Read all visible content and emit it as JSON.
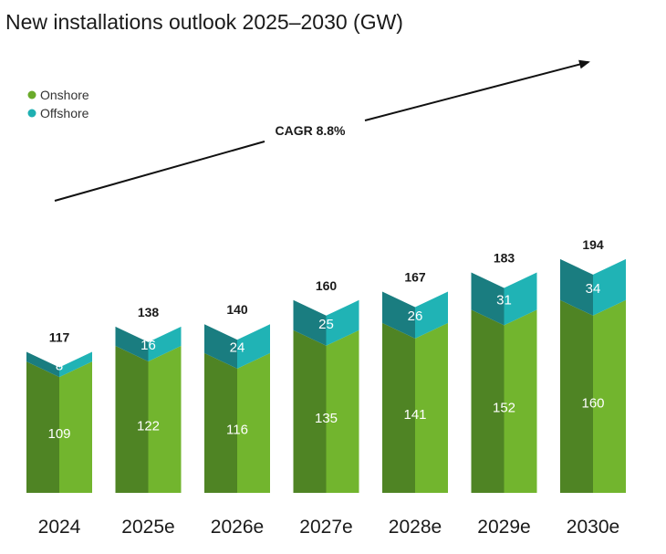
{
  "chart_data": {
    "type": "bar",
    "stacked": true,
    "title": "New installations outlook 2025–2030 (GW)",
    "categories": [
      "2024",
      "2025e",
      "2026e",
      "2027e",
      "2028e",
      "2029e",
      "2030e"
    ],
    "series": [
      {
        "name": "Onshore",
        "values": [
          109,
          122,
          116,
          135,
          141,
          152,
          160
        ]
      },
      {
        "name": "Offshore",
        "values": [
          8,
          16,
          24,
          25,
          26,
          31,
          34
        ]
      }
    ],
    "totals": [
      117,
      138,
      140,
      160,
      167,
      183,
      194
    ],
    "annotation": "CAGR 8.8%",
    "legend_position": "top-left",
    "colors": {
      "onshore_light": "#72b52e",
      "onshore_dark": "#4f8424",
      "offshore_light": "#20b3b5",
      "offshore_dark": "#1a7d80",
      "legend_onshore": "#6aaa2a",
      "legend_offshore": "#1fb0b2"
    }
  }
}
